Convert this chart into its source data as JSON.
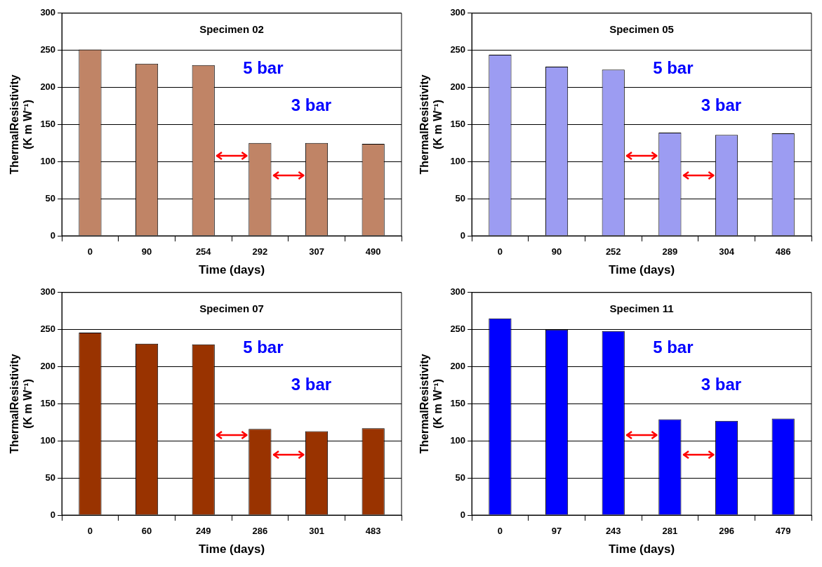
{
  "chart_data": [
    {
      "type": "bar",
      "title": "Specimen 02",
      "xlabel": "Time (days)",
      "ylabel": "ThermalResistivity (K m W⁻¹)",
      "categories": [
        "0",
        "90",
        "254",
        "292",
        "307",
        "490"
      ],
      "values": [
        251,
        232,
        230,
        125,
        125,
        124
      ],
      "color": "#c08466",
      "ylim": [
        0,
        300
      ],
      "yticks": [
        0,
        50,
        100,
        150,
        200,
        250,
        300
      ],
      "grid": "y",
      "annotations": [
        "5 bar",
        "3 bar"
      ]
    },
    {
      "type": "bar",
      "title": "Specimen 05",
      "xlabel": "Time (days)",
      "ylabel": "ThermalResistivity (K m W⁻¹)",
      "categories": [
        "0",
        "90",
        "252",
        "289",
        "304",
        "486"
      ],
      "values": [
        244,
        228,
        224,
        139,
        136,
        138
      ],
      "color": "#9c9cf2",
      "ylim": [
        0,
        300
      ],
      "yticks": [
        0,
        50,
        100,
        150,
        200,
        250,
        300
      ],
      "grid": "y",
      "annotations": [
        "5 bar",
        "3 bar"
      ]
    },
    {
      "type": "bar",
      "title": "Specimen 07",
      "xlabel": "Time (days)",
      "ylabel": "ThermalResistivity (K m W⁻¹)",
      "categories": [
        "0",
        "60",
        "249",
        "286",
        "301",
        "483"
      ],
      "values": [
        246,
        231,
        230,
        116,
        113,
        117
      ],
      "color": "#993300",
      "ylim": [
        0,
        300
      ],
      "yticks": [
        0,
        50,
        100,
        150,
        200,
        250,
        300
      ],
      "grid": "y",
      "annotations": [
        "5 bar",
        "3 bar"
      ]
    },
    {
      "type": "bar",
      "title": "Specimen 11",
      "xlabel": "Time (days)",
      "ylabel": "ThermalResistivity (K m W⁻¹)",
      "categories": [
        "0",
        "97",
        "243",
        "281",
        "296",
        "479"
      ],
      "values": [
        265,
        250,
        248,
        129,
        127,
        130
      ],
      "color": "#0000ff",
      "ylim": [
        0,
        300
      ],
      "yticks": [
        0,
        50,
        100,
        150,
        200,
        250,
        300
      ],
      "grid": "y",
      "annotations": [
        "5 bar",
        "3 bar"
      ]
    }
  ]
}
